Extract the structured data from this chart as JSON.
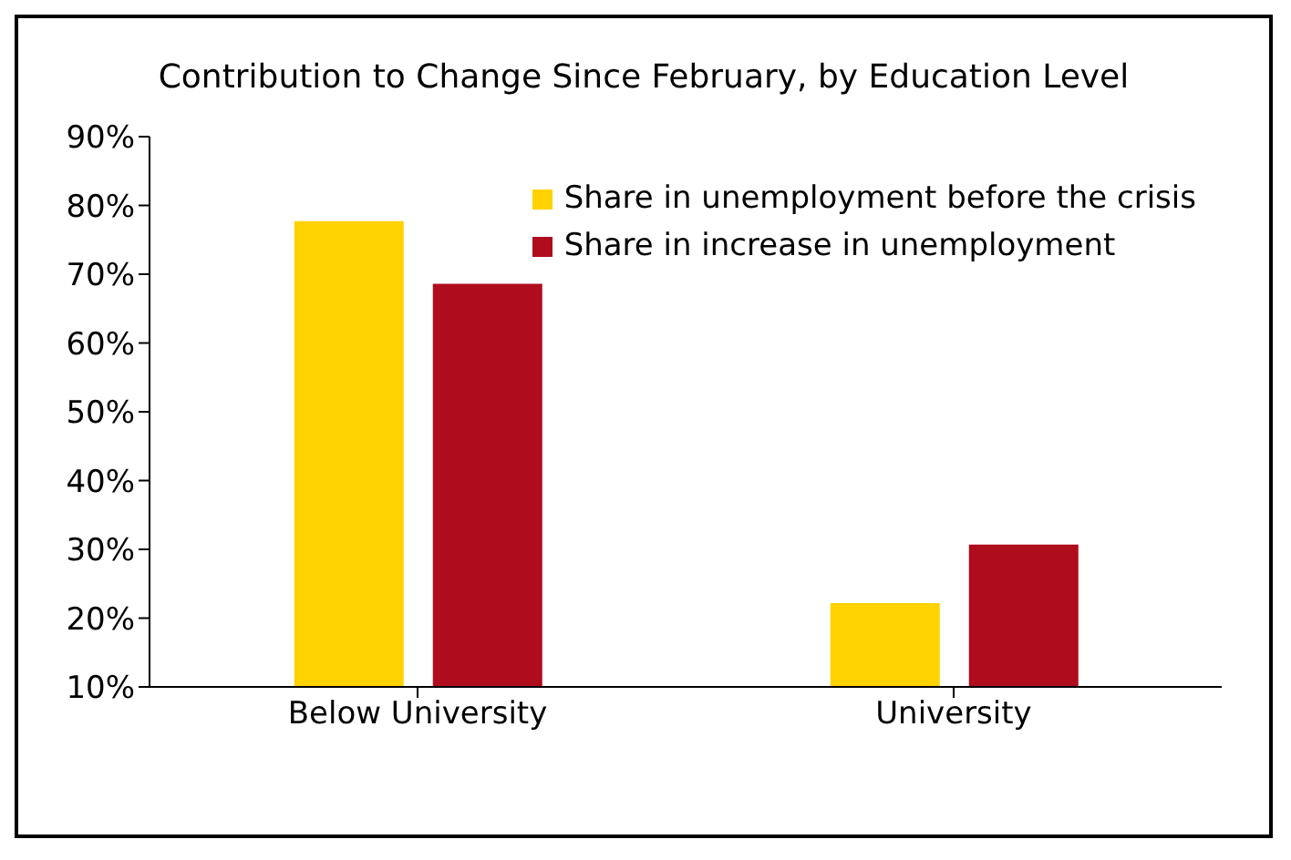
{
  "chart_data": {
    "type": "bar",
    "title": "Contribution to Change Since February, by Education Level",
    "categories": [
      "Below University",
      "University"
    ],
    "series": [
      {
        "name": "Share in unemployment before the crisis",
        "color": "#ffd200",
        "values": [
          77.7,
          22.2
        ]
      },
      {
        "name": "Share in increase in unemployment",
        "color": "#af0c1e",
        "values": [
          68.6,
          30.7
        ]
      }
    ],
    "ylim": [
      10,
      90
    ],
    "yticks": [
      {
        "value": 10,
        "label": "10%"
      },
      {
        "value": 20,
        "label": "20%"
      },
      {
        "value": 30,
        "label": "30%"
      },
      {
        "value": 40,
        "label": "40%"
      },
      {
        "value": 50,
        "label": "50%"
      },
      {
        "value": 60,
        "label": "60%"
      },
      {
        "value": 70,
        "label": "70%"
      },
      {
        "value": 80,
        "label": "80%"
      },
      {
        "value": 90,
        "label": "90%"
      }
    ],
    "grid": false,
    "legend": "top right"
  }
}
